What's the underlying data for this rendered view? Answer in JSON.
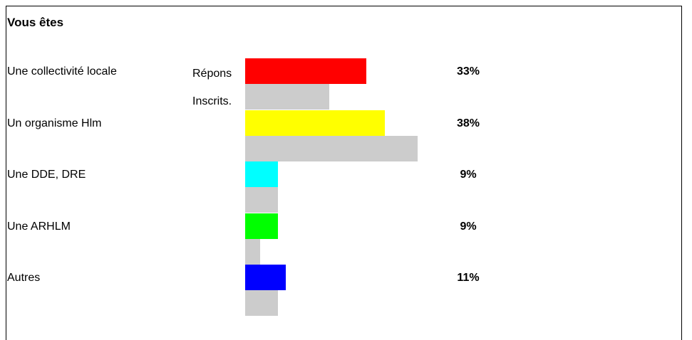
{
  "chart_data": {
    "type": "bar",
    "orientation": "horizontal",
    "title": "Vous êtes",
    "categories": [
      "Une collectivité locale",
      "Un organisme Hlm",
      "Une DDE, DRE",
      "Une ARHLM",
      "Autres"
    ],
    "series": [
      {
        "name": "Répons",
        "values": [
          33,
          38,
          9,
          9,
          11
        ],
        "colors": [
          "#ff0000",
          "#ffff00",
          "#00ffff",
          "#00ff00",
          "#0000ff"
        ]
      },
      {
        "name": "Inscrits.",
        "values": [
          23,
          47,
          9,
          4,
          9
        ],
        "color": "#cccccc"
      }
    ],
    "data_labels": [
      "33%",
      "38%",
      "9%",
      "9%",
      "11%"
    ],
    "xlim": [
      0,
      50
    ],
    "grid": false,
    "legend": "inline"
  }
}
